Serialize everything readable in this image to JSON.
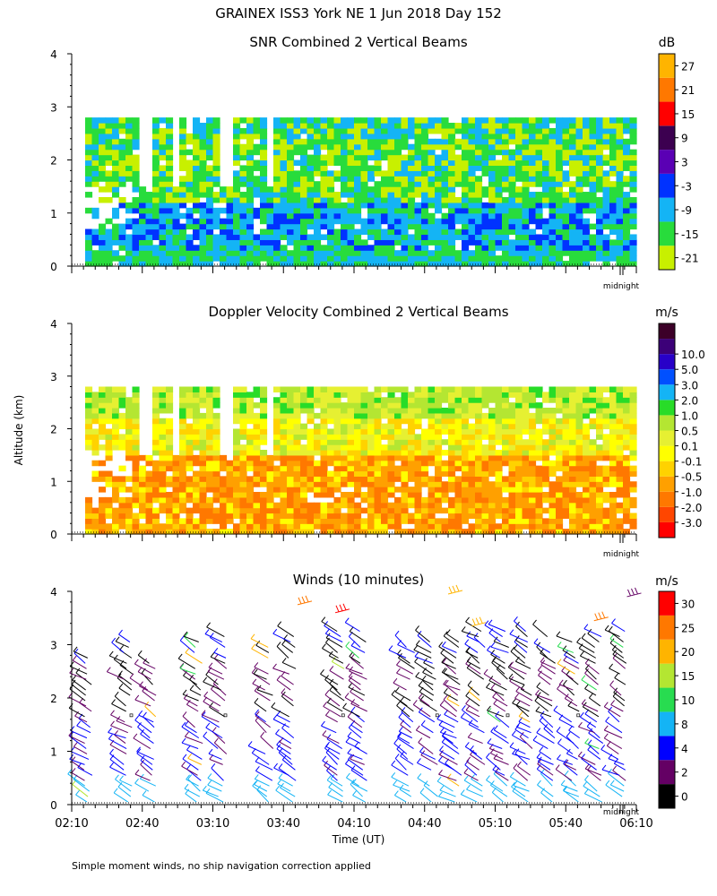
{
  "header": {
    "title": "GRAINEX ISS3 York NE   1 Jun 2018 Day 152",
    "footnote": "Simple moment winds, no ship navigation correction applied"
  },
  "colors": {
    "snr": [
      "#c8f000",
      "#28dc3c",
      "#14b4f5",
      "#0032ff",
      "#5a00b4",
      "#3c0050",
      "#ff0000",
      "#ff7800",
      "#ffb400"
    ],
    "vel": [
      "#ff0000",
      "#ff4600",
      "#ff7800",
      "#ffa000",
      "#ffd200",
      "#ffff00",
      "#e6f032",
      "#b4e632",
      "#28dc28",
      "#14b4f5",
      "#0050ff",
      "#2800c8",
      "#3c0078",
      "#3c0028"
    ],
    "wind": [
      "#000000",
      "#640064",
      "#0000ff",
      "#14b4f5",
      "#28dc50",
      "#b4e632",
      "#ffb400",
      "#ff7800",
      "#ff0000"
    ]
  },
  "chart_data": [
    {
      "type": "heatmap",
      "title": "SNR Combined 2 Vertical Beams",
      "ylabel": "",
      "yticks": [
        "0",
        "1",
        "2",
        "3",
        "4"
      ],
      "ylim": [
        0,
        4
      ],
      "xlim": [
        "02:10",
        "06:10"
      ],
      "midnight_label": "midnight",
      "colorbar": {
        "unit": "dB",
        "ticks": [
          "-21",
          "-15",
          "-9",
          "-3",
          "3",
          "9",
          "15",
          "21",
          "27"
        ]
      }
    },
    {
      "type": "heatmap",
      "title": "Doppler Velocity Combined 2 Vertical Beams",
      "ylabel": "Altitude (km)",
      "yticks": [
        "0",
        "1",
        "2",
        "3",
        "4"
      ],
      "ylim": [
        0,
        4
      ],
      "xlim": [
        "02:10",
        "06:10"
      ],
      "midnight_label": "midnight",
      "colorbar": {
        "unit": "m/s",
        "ticks": [
          "-3.0",
          "-2.0",
          "-1.0",
          "-0.5",
          "-0.1",
          "0.1",
          "0.5",
          "1.0",
          "2.0",
          "3.0",
          "5.0",
          "10.0"
        ]
      }
    },
    {
      "type": "scatter",
      "title": "Winds (10 minutes)",
      "ylabel": "",
      "xlabel": "Time (UT)",
      "yticks": [
        "0",
        "1",
        "2",
        "3",
        "4"
      ],
      "ylim": [
        0,
        4
      ],
      "xticks": [
        "02:10",
        "02:40",
        "03:10",
        "03:40",
        "04:10",
        "04:40",
        "05:10",
        "05:40",
        "06:10"
      ],
      "midnight_label": "midnight",
      "colorbar": {
        "unit": "m/s",
        "ticks": [
          "0",
          "2",
          "4",
          "8",
          "10",
          "15",
          "20",
          "25",
          "30"
        ]
      },
      "profile_times_min": [
        7,
        24,
        34,
        54,
        64,
        84,
        94,
        114,
        124,
        144,
        154,
        164,
        174,
        184,
        194,
        204,
        214,
        224,
        234
      ],
      "profile_top_km": [
        2.8,
        3.1,
        2.7,
        3.1,
        3.2,
        3.1,
        3.2,
        3.3,
        3.3,
        3.0,
        3.1,
        3.1,
        3.3,
        3.3,
        3.3,
        3.2,
        3.1,
        3.2,
        3.3
      ]
    }
  ]
}
